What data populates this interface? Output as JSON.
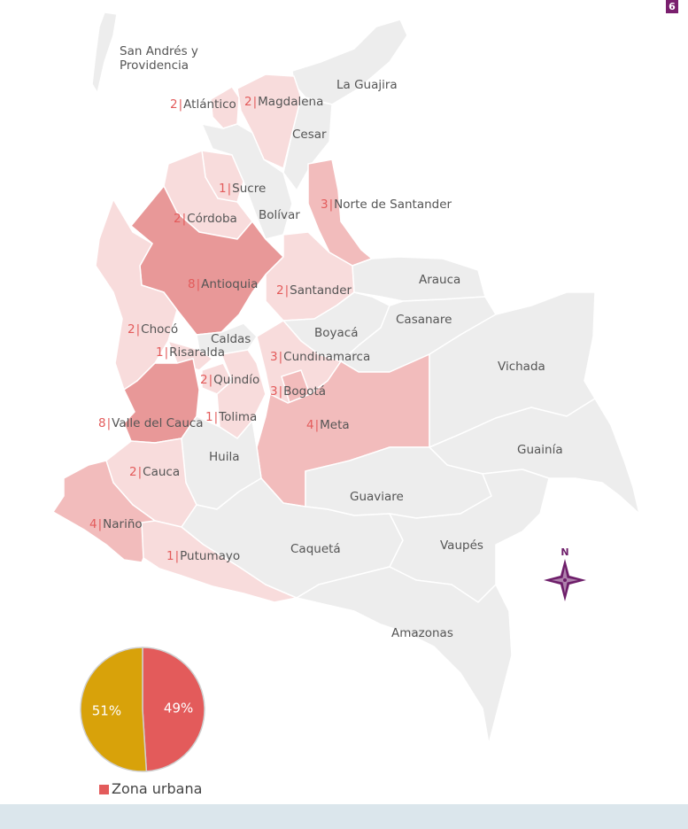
{
  "page_badge": "6",
  "legend": {
    "swatch_color": "#e35b5b",
    "label": "Zona urbana"
  },
  "pie": {
    "slices": [
      {
        "value": 49,
        "label": "49%",
        "color": "#e35b5b"
      },
      {
        "value": 51,
        "label": "51%",
        "color": "#d8a20a"
      }
    ]
  },
  "colors": {
    "empty": "#ededed",
    "light": "#f8dcdc",
    "mid": "#f2bcbc",
    "dark": "#e89898",
    "compass": "#6e1e6a"
  },
  "compass": {
    "label": "N",
    "icon": "compass-rose-icon"
  },
  "departments": [
    {
      "name": "San Andrés y Providencia"
    },
    {
      "name": "La Guajira"
    },
    {
      "name": "Atlántico",
      "count": "2"
    },
    {
      "name": "Magdalena",
      "count": "2"
    },
    {
      "name": "Cesar"
    },
    {
      "name": "Sucre",
      "count": "1"
    },
    {
      "name": "Córdoba",
      "count": "2"
    },
    {
      "name": "Bolívar"
    },
    {
      "name": "Norte de Santander",
      "count": "3"
    },
    {
      "name": "Antioquia",
      "count": "8"
    },
    {
      "name": "Santander",
      "count": "2"
    },
    {
      "name": "Arauca"
    },
    {
      "name": "Casanare"
    },
    {
      "name": "Chocó",
      "count": "2"
    },
    {
      "name": "Caldas"
    },
    {
      "name": "Boyacá"
    },
    {
      "name": "Risaralda",
      "count": "1"
    },
    {
      "name": "Cundinamarca",
      "count": "3"
    },
    {
      "name": "Vichada"
    },
    {
      "name": "Quindío",
      "count": "2"
    },
    {
      "name": "Bogotá",
      "count": "3"
    },
    {
      "name": "Valle del Cauca",
      "count": "8"
    },
    {
      "name": "Tolima",
      "count": "1"
    },
    {
      "name": "Meta",
      "count": "4"
    },
    {
      "name": "Guainía"
    },
    {
      "name": "Huila"
    },
    {
      "name": "Cauca",
      "count": "2"
    },
    {
      "name": "Guaviare"
    },
    {
      "name": "Nariño",
      "count": "4"
    },
    {
      "name": "Caquetá"
    },
    {
      "name": "Vaupés"
    },
    {
      "name": "Putumayo",
      "count": "1"
    },
    {
      "name": "Amazonas"
    }
  ]
}
